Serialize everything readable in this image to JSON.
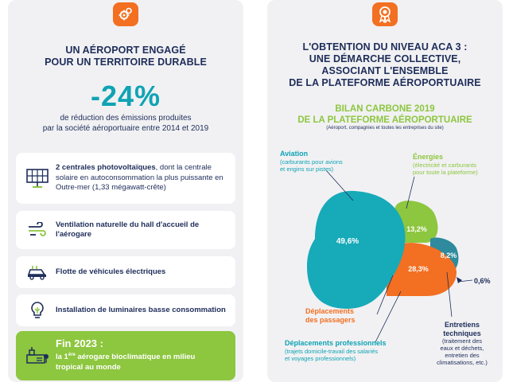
{
  "left": {
    "heading": [
      "UN AÉROPORT ENGAGÉ",
      "POUR UN TERRITOIRE DURABLE"
    ],
    "stat": "-24%",
    "stat_desc": [
      "de réduction des émissions produites",
      "par la société aéroportuaire entre 2014 et 2019"
    ],
    "items": [
      {
        "icon": "solar-panel-icon",
        "bold": "2 centrales photovoltaïques",
        "rest": ", dont la centrale solaire en autoconsommation la plus puissante en Outre-mer (1,33 mégawatt-crête)"
      },
      {
        "icon": "wind-icon",
        "bold": "Ventilation naturelle du hall d'accueil de l'aérogare",
        "rest": ""
      },
      {
        "icon": "electric-car-icon",
        "bold": "Flotte de véhicules électriques",
        "rest": ""
      },
      {
        "icon": "light-bulb-icon",
        "bold": "Installation de luminaires basse consommation",
        "rest": ""
      }
    ],
    "final": {
      "title": "Fin 2023 :",
      "line1_prefix": "la 1",
      "sup": "ère",
      "line1_suffix": " aérogare bioclimatique en milieu",
      "line2": "tropical au monde",
      "icon": "terminal-building-icon"
    }
  },
  "right": {
    "heading": [
      "L'OBTENTION DU NIVEAU ACA 3 :",
      "UNE DÉMARCHE COLLECTIVE,",
      "ASSOCIANT L'ENSEMBLE",
      "DE LA PLATEFORME AÉROPORTUAIRE"
    ],
    "bilan_title": [
      "BILAN CARBONE 2019",
      "DE LA PLATEFORME AÉROPORTUAIRE"
    ],
    "bilan_sub": "(Aéroport, compagnies et toutes les entreprises du site)",
    "labels": {
      "aviation": {
        "title": "Aviation",
        "sub": [
          "(carburants pour avions",
          "et engins sur pistes)"
        ]
      },
      "energies": {
        "title": "Énergies",
        "sub": [
          "(électricité et carburants",
          "pour toute la plateforme)"
        ]
      },
      "passagers": {
        "title": [
          "Déplacements",
          "des passagers"
        ]
      },
      "pro": {
        "title": "Déplacements professionnels",
        "sub": [
          "(trajets domicile-travail des salariés",
          "et voyages professionnels)"
        ]
      },
      "entretiens": {
        "title": [
          "Entretiens",
          "techniques"
        ],
        "sub": [
          "(traitement des",
          "eaux et déchets,",
          "entretien des",
          "climatisations, etc.)"
        ]
      }
    }
  },
  "chart_data": {
    "type": "pie",
    "title": "BILAN CARBONE 2019 DE LA PLATEFORME AÉROPORTUAIRE",
    "categories": [
      "Aviation",
      "Énergies",
      "Déplacements des passagers",
      "Entretiens techniques",
      "Déplacements professionnels"
    ],
    "values": [
      49.6,
      13.2,
      28.3,
      8.2,
      0.6
    ],
    "value_labels": [
      "49,6%",
      "13,2%",
      "28,3%",
      "8,2%",
      "0,6%"
    ],
    "colors": [
      "#17aab9",
      "#8dc63f",
      "#f36f21",
      "#2e8a9c",
      "#1e2d5a"
    ]
  }
}
